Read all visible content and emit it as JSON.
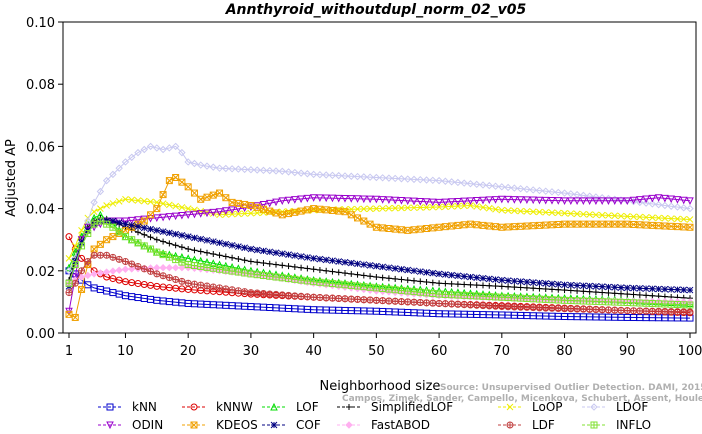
{
  "chart_data": {
    "type": "line",
    "title": "Annthyroid_withoutdupl_norm_02_v05",
    "xlabel": "Neighborhood size",
    "ylabel": "Adjusted AP",
    "xlim": [
      1,
      100
    ],
    "ylim": [
      0.0,
      0.1
    ],
    "x_ticks": [
      "1",
      "10",
      "20",
      "30",
      "40",
      "50",
      "60",
      "70",
      "80",
      "90",
      "100"
    ],
    "y_ticks": [
      "0.00",
      "0.02",
      "0.04",
      "0.06",
      "0.08",
      "0.10"
    ],
    "grid": false,
    "legend_position": "bottom",
    "watermark": [
      "Source: Unsupervised Outlier Detection. DAMI, 2015.",
      "Campos, Zimek, Sander, Campello, Micenkova, Schubert, Assent, Houle"
    ],
    "series": [
      {
        "name": "kNN",
        "color": "#0000cc",
        "marker": "square",
        "points": [
          [
            1,
            0.02
          ],
          [
            2,
            0.019
          ],
          [
            3,
            0.017
          ],
          [
            4,
            0.0155
          ],
          [
            5,
            0.0145
          ],
          [
            7,
            0.0135
          ],
          [
            10,
            0.012
          ],
          [
            15,
            0.0105
          ],
          [
            20,
            0.0095
          ],
          [
            30,
            0.0085
          ],
          [
            40,
            0.0075
          ],
          [
            50,
            0.007
          ],
          [
            60,
            0.0062
          ],
          [
            70,
            0.0058
          ],
          [
            80,
            0.0053
          ],
          [
            90,
            0.005
          ],
          [
            100,
            0.0048
          ]
        ]
      },
      {
        "name": "kNNW",
        "color": "#dd0000",
        "marker": "circle",
        "points": [
          [
            1,
            0.031
          ],
          [
            2,
            0.027
          ],
          [
            3,
            0.024
          ],
          [
            4,
            0.022
          ],
          [
            5,
            0.02
          ],
          [
            7,
            0.018
          ],
          [
            10,
            0.0165
          ],
          [
            15,
            0.015
          ],
          [
            20,
            0.014
          ],
          [
            30,
            0.0125
          ],
          [
            40,
            0.0115
          ],
          [
            50,
            0.0105
          ],
          [
            60,
            0.0095
          ],
          [
            70,
            0.0088
          ],
          [
            80,
            0.008
          ],
          [
            90,
            0.0072
          ],
          [
            100,
            0.0065
          ]
        ]
      },
      {
        "name": "LOF",
        "color": "#00dd00",
        "marker": "triangle-up",
        "points": [
          [
            1,
            0.021
          ],
          [
            2,
            0.026
          ],
          [
            3,
            0.031
          ],
          [
            4,
            0.035
          ],
          [
            5,
            0.037
          ],
          [
            6,
            0.038
          ],
          [
            8,
            0.035
          ],
          [
            10,
            0.031
          ],
          [
            15,
            0.026
          ],
          [
            20,
            0.024
          ],
          [
            30,
            0.02
          ],
          [
            40,
            0.017
          ],
          [
            50,
            0.015
          ],
          [
            60,
            0.0135
          ],
          [
            70,
            0.012
          ],
          [
            80,
            0.0112
          ],
          [
            90,
            0.0105
          ],
          [
            100,
            0.0095
          ]
        ]
      },
      {
        "name": "SimplifiedLOF",
        "color": "#000000",
        "marker": "plus",
        "points": [
          [
            1,
            0.017
          ],
          [
            2,
            0.024
          ],
          [
            3,
            0.03
          ],
          [
            4,
            0.034
          ],
          [
            5,
            0.036
          ],
          [
            6,
            0.037
          ],
          [
            8,
            0.036
          ],
          [
            10,
            0.034
          ],
          [
            15,
            0.03
          ],
          [
            20,
            0.027
          ],
          [
            30,
            0.023
          ],
          [
            40,
            0.0205
          ],
          [
            50,
            0.018
          ],
          [
            60,
            0.016
          ],
          [
            70,
            0.015
          ],
          [
            80,
            0.0138
          ],
          [
            90,
            0.0125
          ],
          [
            100,
            0.0112
          ]
        ]
      },
      {
        "name": "LoOP",
        "color": "#eeee00",
        "marker": "x",
        "points": [
          [
            1,
            0.024
          ],
          [
            2,
            0.028
          ],
          [
            3,
            0.033
          ],
          [
            4,
            0.037
          ],
          [
            5,
            0.039
          ],
          [
            7,
            0.041
          ],
          [
            10,
            0.043
          ],
          [
            15,
            0.042
          ],
          [
            20,
            0.04
          ],
          [
            25,
            0.038
          ],
          [
            30,
            0.0385
          ],
          [
            40,
            0.0395
          ],
          [
            50,
            0.04
          ],
          [
            60,
            0.0405
          ],
          [
            65,
            0.041
          ],
          [
            70,
            0.0395
          ],
          [
            80,
            0.0385
          ],
          [
            90,
            0.0375
          ],
          [
            100,
            0.0365
          ]
        ]
      },
      {
        "name": "LDOF",
        "color": "#c8c8f0",
        "marker": "diamond",
        "points": [
          [
            1,
            0.02
          ],
          [
            2,
            0.024
          ],
          [
            3,
            0.029
          ],
          [
            4,
            0.036
          ],
          [
            5,
            0.042
          ],
          [
            7,
            0.049
          ],
          [
            10,
            0.055
          ],
          [
            12,
            0.058
          ],
          [
            14,
            0.06
          ],
          [
            16,
            0.059
          ],
          [
            18,
            0.06
          ],
          [
            19,
            0.058
          ],
          [
            20,
            0.055
          ],
          [
            22,
            0.054
          ],
          [
            25,
            0.053
          ],
          [
            30,
            0.0525
          ],
          [
            35,
            0.052
          ],
          [
            40,
            0.051
          ],
          [
            50,
            0.05
          ],
          [
            60,
            0.049
          ],
          [
            70,
            0.047
          ],
          [
            80,
            0.045
          ],
          [
            90,
            0.0425
          ],
          [
            100,
            0.04
          ]
        ]
      },
      {
        "name": "ODIN",
        "color": "#9900cc",
        "marker": "triangle-down",
        "points": [
          [
            1,
            0.007
          ],
          [
            2,
            0.018
          ],
          [
            3,
            0.03
          ],
          [
            4,
            0.034
          ],
          [
            5,
            0.034
          ],
          [
            7,
            0.036
          ],
          [
            10,
            0.036
          ],
          [
            15,
            0.037
          ],
          [
            20,
            0.038
          ],
          [
            25,
            0.039
          ],
          [
            30,
            0.0405
          ],
          [
            35,
            0.0425
          ],
          [
            40,
            0.0435
          ],
          [
            50,
            0.043
          ],
          [
            60,
            0.042
          ],
          [
            70,
            0.043
          ],
          [
            80,
            0.0425
          ],
          [
            90,
            0.0425
          ],
          [
            95,
            0.0435
          ],
          [
            100,
            0.0425
          ]
        ]
      },
      {
        "name": "KDEOS",
        "color": "#f0a000",
        "marker": "square-x",
        "points": [
          [
            1,
            0.006
          ],
          [
            2,
            0.005
          ],
          [
            3,
            0.014
          ],
          [
            4,
            0.022
          ],
          [
            5,
            0.027
          ],
          [
            7,
            0.03
          ],
          [
            10,
            0.033
          ],
          [
            13,
            0.036
          ],
          [
            15,
            0.04
          ],
          [
            17,
            0.049
          ],
          [
            18,
            0.05
          ],
          [
            20,
            0.047
          ],
          [
            22,
            0.043
          ],
          [
            25,
            0.045
          ],
          [
            27,
            0.042
          ],
          [
            30,
            0.041
          ],
          [
            35,
            0.038
          ],
          [
            40,
            0.04
          ],
          [
            45,
            0.039
          ],
          [
            50,
            0.034
          ],
          [
            55,
            0.033
          ],
          [
            60,
            0.034
          ],
          [
            65,
            0.035
          ],
          [
            70,
            0.034
          ],
          [
            80,
            0.035
          ],
          [
            90,
            0.035
          ],
          [
            100,
            0.034
          ]
        ]
      },
      {
        "name": "COF",
        "color": "#000080",
        "marker": "star",
        "points": [
          [
            1,
            0.015
          ],
          [
            2,
            0.023
          ],
          [
            3,
            0.029
          ],
          [
            4,
            0.033
          ],
          [
            5,
            0.035
          ],
          [
            6,
            0.036
          ],
          [
            8,
            0.036
          ],
          [
            10,
            0.035
          ],
          [
            15,
            0.033
          ],
          [
            20,
            0.031
          ],
          [
            30,
            0.027
          ],
          [
            40,
            0.024
          ],
          [
            50,
            0.0215
          ],
          [
            60,
            0.019
          ],
          [
            70,
            0.017
          ],
          [
            80,
            0.0155
          ],
          [
            90,
            0.0145
          ],
          [
            100,
            0.0138
          ]
        ]
      },
      {
        "name": "FastABOD",
        "color": "#ffb0f0",
        "marker": "diamond-filled",
        "points": [
          [
            1,
            0.016
          ],
          [
            3,
            0.018
          ],
          [
            5,
            0.019
          ],
          [
            10,
            0.0205
          ],
          [
            15,
            0.021
          ],
          [
            20,
            0.021
          ],
          [
            30,
            0.019
          ],
          [
            40,
            0.016
          ],
          [
            50,
            0.0135
          ],
          [
            60,
            0.012
          ],
          [
            70,
            0.0112
          ],
          [
            80,
            0.0105
          ],
          [
            90,
            0.0102
          ],
          [
            100,
            0.01
          ]
        ]
      },
      {
        "name": "LDF",
        "color": "#c04040",
        "marker": "circle-plus",
        "points": [
          [
            1,
            0.013
          ],
          [
            2,
            0.016
          ],
          [
            3,
            0.02
          ],
          [
            4,
            0.023
          ],
          [
            5,
            0.025
          ],
          [
            7,
            0.025
          ],
          [
            10,
            0.023
          ],
          [
            15,
            0.019
          ],
          [
            20,
            0.016
          ],
          [
            30,
            0.013
          ],
          [
            40,
            0.0115
          ],
          [
            50,
            0.0105
          ],
          [
            60,
            0.0095
          ],
          [
            70,
            0.0085
          ],
          [
            80,
            0.0078
          ],
          [
            90,
            0.0072
          ],
          [
            100,
            0.0068
          ]
        ]
      },
      {
        "name": "INFLO",
        "color": "#80e030",
        "marker": "square-star",
        "points": [
          [
            1,
            0.016
          ],
          [
            2,
            0.022
          ],
          [
            3,
            0.028
          ],
          [
            4,
            0.032
          ],
          [
            5,
            0.035
          ],
          [
            6,
            0.036
          ],
          [
            8,
            0.034
          ],
          [
            10,
            0.031
          ],
          [
            15,
            0.026
          ],
          [
            20,
            0.022
          ],
          [
            30,
            0.019
          ],
          [
            40,
            0.0165
          ],
          [
            50,
            0.0145
          ],
          [
            60,
            0.0125
          ],
          [
            70,
            0.0115
          ],
          [
            80,
            0.0105
          ],
          [
            90,
            0.0098
          ],
          [
            100,
            0.009
          ]
        ]
      }
    ]
  }
}
